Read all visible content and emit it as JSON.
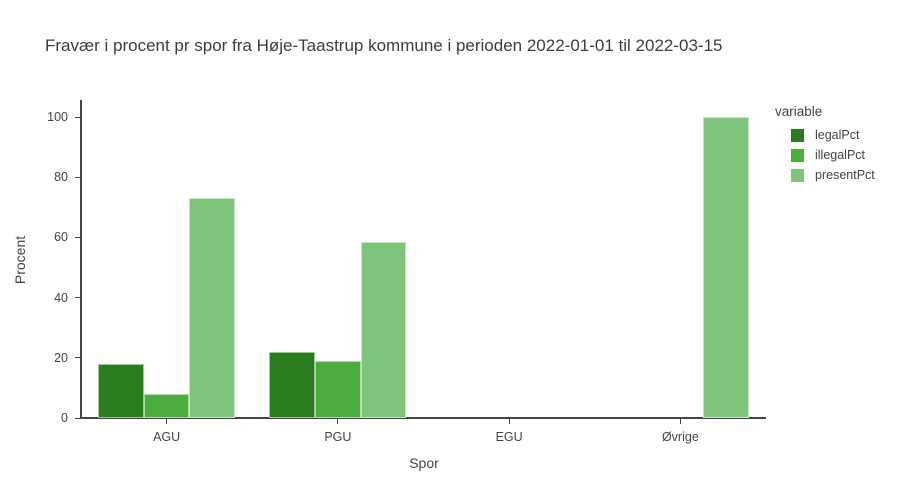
{
  "title": "Fravær i procent pr spor fra Høje-Taastrup kommune i perioden 2022-01-01 til 2022-03-15",
  "chart_data": {
    "type": "bar",
    "title": "Fravær i procent pr spor fra Høje-Taastrup kommune i perioden 2022-01-01 til 2022-03-15",
    "categories": [
      "AGU",
      "PGU",
      "EGU",
      "Øvrige"
    ],
    "series": [
      {
        "name": "legalPct",
        "color": "#2a7d1e",
        "values": [
          18,
          22,
          0,
          0
        ]
      },
      {
        "name": "illegalPct",
        "color": "#4aad3e",
        "values": [
          8,
          19,
          0,
          0
        ]
      },
      {
        "name": "presentPct",
        "color": "#7ec47a",
        "values": [
          73,
          58.5,
          0,
          100
        ]
      }
    ],
    "xlabel": "Spor",
    "ylabel": "Procent",
    "ylim": [
      0,
      105
    ],
    "yticks": [
      0,
      20,
      40,
      60,
      80,
      100
    ],
    "grid": false,
    "background": "#ffffff",
    "axis_color": "#444444",
    "legend": {
      "title": "variable",
      "position": "right",
      "entries": [
        "legalPct",
        "illegalPct",
        "presentPct"
      ]
    }
  }
}
